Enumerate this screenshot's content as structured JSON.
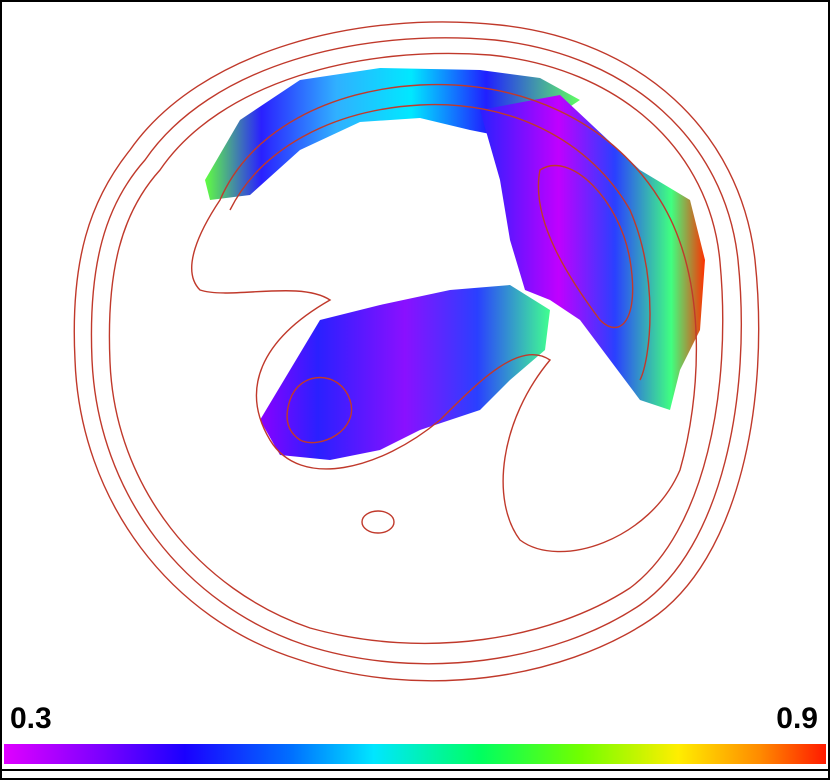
{
  "colorbar": {
    "min": 0.3,
    "max": 0.9
  }
}
